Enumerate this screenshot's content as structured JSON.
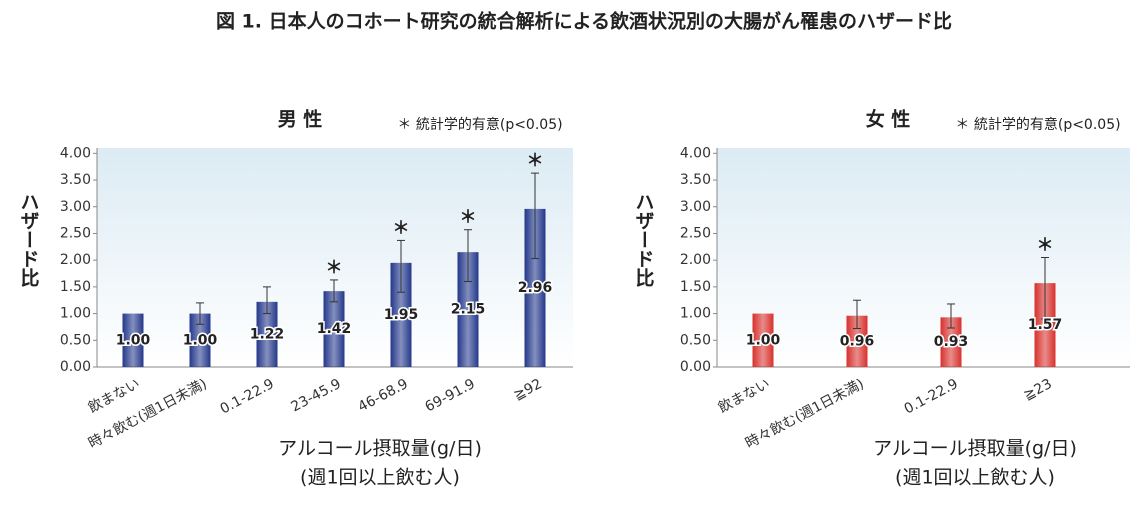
{
  "title": "図 1. 日本人のコホート研究の統合解析による飲酒状況別の大腸がん罹患のハザード比",
  "chart_data": [
    {
      "type": "bar",
      "title": "男 性",
      "note": "＊ 統計学的有意(p<0.05)",
      "y_label": "ハザード比",
      "x_label": [
        "アルコール摂取量(g/日)",
        "(週1回以上飲む人)"
      ],
      "categories": [
        "飲まない",
        "時々飲む(週1日未満)",
        "0.1-22.9",
        "23-45.9",
        "46-68.9",
        "69-91.9",
        "≧92"
      ],
      "values": [
        1.0,
        1.0,
        1.22,
        1.42,
        1.95,
        2.15,
        2.96
      ],
      "value_labels": [
        "1.00",
        "1.00",
        "1.22",
        "1.42",
        "1.95",
        "2.15",
        "2.96"
      ],
      "ci_lower": [
        null,
        0.8,
        1.0,
        1.22,
        1.4,
        1.6,
        2.03
      ],
      "ci_upper": [
        null,
        1.2,
        1.5,
        1.63,
        2.37,
        2.57,
        3.63
      ],
      "significance": [
        null,
        null,
        null,
        "＊",
        "＊",
        "＊",
        "＊"
      ],
      "color": "#24378a",
      "ylim": [
        0,
        4.1
      ],
      "yticks": [
        {
          "value": 0,
          "label": "0.00"
        },
        {
          "value": 0.5,
          "label": "0.50"
        },
        {
          "value": 1,
          "label": "1.00"
        },
        {
          "value": 1.5,
          "label": "1.50"
        },
        {
          "value": 2,
          "label": "2.00"
        },
        {
          "value": 2.5,
          "label": "2.50"
        },
        {
          "value": 3,
          "label": "3.00"
        },
        {
          "value": 3.5,
          "label": "3.50"
        },
        {
          "value": 4,
          "label": "4.00"
        }
      ]
    },
    {
      "type": "bar",
      "title": "女 性",
      "note": "＊ 統計学的有意(p<0.05)",
      "y_label": "ハザード比",
      "x_label": [
        "アルコール摂取量(g/日)",
        "(週1回以上飲む人)"
      ],
      "categories": [
        "飲まない",
        "時々飲む(週1日未満)",
        "0.1-22.9",
        "≧23"
      ],
      "values": [
        1.0,
        0.96,
        0.93,
        1.57
      ],
      "value_labels": [
        "1.00",
        "0.96",
        "0.93",
        "1.57"
      ],
      "ci_lower": [
        null,
        0.72,
        0.73,
        0.9
      ],
      "ci_upper": [
        null,
        1.25,
        1.18,
        2.05
      ],
      "significance": [
        null,
        null,
        null,
        "＊"
      ],
      "color": "#d8302c",
      "ylim": [
        0,
        4.1
      ],
      "yticks": [
        {
          "value": 0,
          "label": "0.00"
        },
        {
          "value": 0.5,
          "label": "0.50"
        },
        {
          "value": 1,
          "label": "1.00"
        },
        {
          "value": 1.5,
          "label": "1.50"
        },
        {
          "value": 2,
          "label": "2.00"
        },
        {
          "value": 2.5,
          "label": "2.50"
        },
        {
          "value": 3,
          "label": "3.00"
        },
        {
          "value": 3.5,
          "label": "3.50"
        },
        {
          "value": 4,
          "label": "4.00"
        }
      ]
    }
  ]
}
